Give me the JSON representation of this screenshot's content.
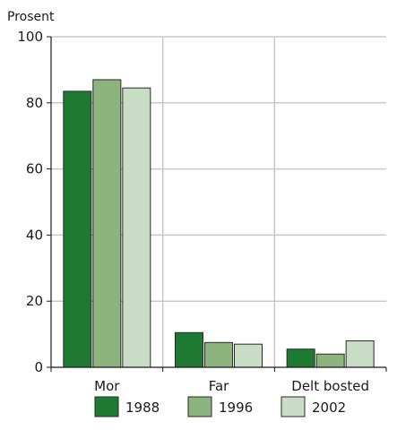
{
  "chart_data": {
    "type": "bar",
    "title": "",
    "ylabel": "Prosent",
    "xlabel": "",
    "categories": [
      "Mor",
      "Far",
      "Delt bosted"
    ],
    "series": [
      {
        "name": "1988",
        "values": [
          83.5,
          10.5,
          5.5
        ],
        "color": "#1e7a33"
      },
      {
        "name": "1996",
        "values": [
          87.0,
          7.5,
          4.0
        ],
        "color": "#8db47f"
      },
      {
        "name": "2002",
        "values": [
          84.5,
          7.0,
          8.0
        ],
        "color": "#c9dcc6"
      }
    ],
    "ylim": [
      0,
      100
    ],
    "yticks": [
      0,
      20,
      40,
      60,
      80,
      100
    ],
    "grid": true,
    "legend_position": "bottom"
  }
}
